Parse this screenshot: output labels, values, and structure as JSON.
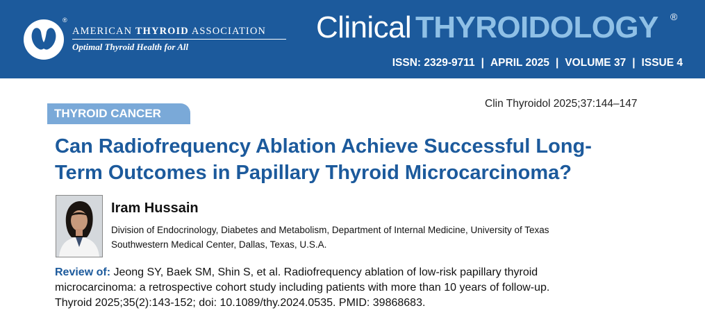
{
  "header": {
    "association": {
      "prefix": "AMERICAN",
      "bold": "THYROID",
      "suffix": "ASSOCIATION",
      "registered": "®",
      "tagline": "Optimal Thyroid Health for All"
    },
    "journal": {
      "part1": "Clinical",
      "part2": "THYROIDOLOGY",
      "registered": "®"
    },
    "issue": {
      "issn": "ISSN: 2329-9711",
      "date": "APRIL 2025",
      "volume": "VOLUME 37",
      "issue": "ISSUE 4",
      "separator": "|"
    },
    "colors": {
      "banner": "#1c5a9c",
      "accent_light": "#8fc0e6"
    }
  },
  "article": {
    "section": "THYROID CANCER",
    "citation": "Clin Thyroidol 2025;37:144–147",
    "title_line1": "Can Radiofrequency Ablation Achieve Successful Long-",
    "title_line2": "Term Outcomes in Papillary Thyroid Microcarcinoma?",
    "author": {
      "name": "Iram Hussain",
      "affiliation_line1": "Division of Endocrinology, Diabetes and Metabolism, Department of Internal Medicine, University of Texas",
      "affiliation_line2": "Southwestern Medical Center, Dallas, Texas, U.S.A."
    },
    "review": {
      "label": "Review of:",
      "line1": "Jeong SY, Baek SM, Shin S, et al. Radiofrequency ablation of low-risk papillary thyroid",
      "line2": "microcarcinoma: a retrospective cohort study including patients with more than 10 years of follow-up.",
      "line3": "Thyroid 2025;35(2):143-152; doi: 10.1089/thy.2024.0535. PMID: 39868683."
    }
  }
}
